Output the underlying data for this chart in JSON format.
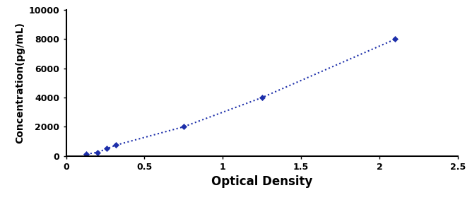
{
  "x": [
    0.13,
    0.2,
    0.26,
    0.32,
    0.75,
    1.25,
    2.1
  ],
  "y": [
    125,
    250,
    500,
    750,
    2000,
    4000,
    8000
  ],
  "line_color": "#1C2EAA",
  "marker": "D",
  "marker_size": 4,
  "marker_color": "#1C2EAA",
  "line_style": ":",
  "line_width": 1.5,
  "xlabel": "Optical Density",
  "ylabel": "Concentration(pg/mL)",
  "xlim": [
    0,
    2.5
  ],
  "ylim": [
    0,
    10000
  ],
  "xticks": [
    0,
    0.5,
    1.0,
    1.5,
    2.0,
    2.5
  ],
  "yticks": [
    0,
    2000,
    4000,
    6000,
    8000,
    10000
  ],
  "xlabel_fontsize": 12,
  "ylabel_fontsize": 10,
  "tick_fontsize": 9,
  "xlabel_fontweight": "bold",
  "ylabel_fontweight": "bold",
  "tick_fontweight": "bold",
  "background_color": "#ffffff",
  "figsize": [
    6.68,
    2.83
  ],
  "dpi": 100
}
